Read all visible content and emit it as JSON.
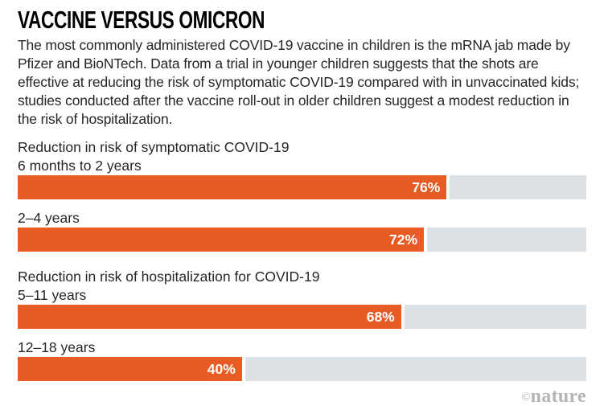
{
  "title": "VACCINE VERSUS OMICRON",
  "intro": "The most commonly administered COVID-19 vaccine in children is the mRNA jab made by Pfizer and BioNTech. Data from a trial in younger children suggests that the shots are effective at reducing the risk of symptomatic COVID-19 compared with in unvaccinated kids; studies conducted after the vaccine roll-out in older children suggest a modest reduction in the risk of hospitalization.",
  "credit": {
    "symbol": "©",
    "name": "nature"
  },
  "colors": {
    "bar": "#E75C25",
    "track": "#DCE1E6",
    "text": "#262626",
    "credit": "#B3B5B6"
  },
  "chart_data": {
    "type": "bar",
    "orientation": "horizontal",
    "unit": "%",
    "xlim": [
      0,
      100
    ],
    "grid": false,
    "legend": false,
    "groups": [
      {
        "header": "Reduction in risk of symptomatic COVID-19",
        "rows": [
          {
            "label": "6 months to 2 years",
            "value": 76,
            "value_label": "76%"
          },
          {
            "label": "2–4 years",
            "value": 72,
            "value_label": "72%"
          }
        ]
      },
      {
        "header": "Reduction in risk of hospitalization for COVID-19",
        "rows": [
          {
            "label": "5–11 years",
            "value": 68,
            "value_label": "68%"
          },
          {
            "label": "12–18 years",
            "value": 40,
            "value_label": "40%"
          }
        ]
      }
    ]
  }
}
